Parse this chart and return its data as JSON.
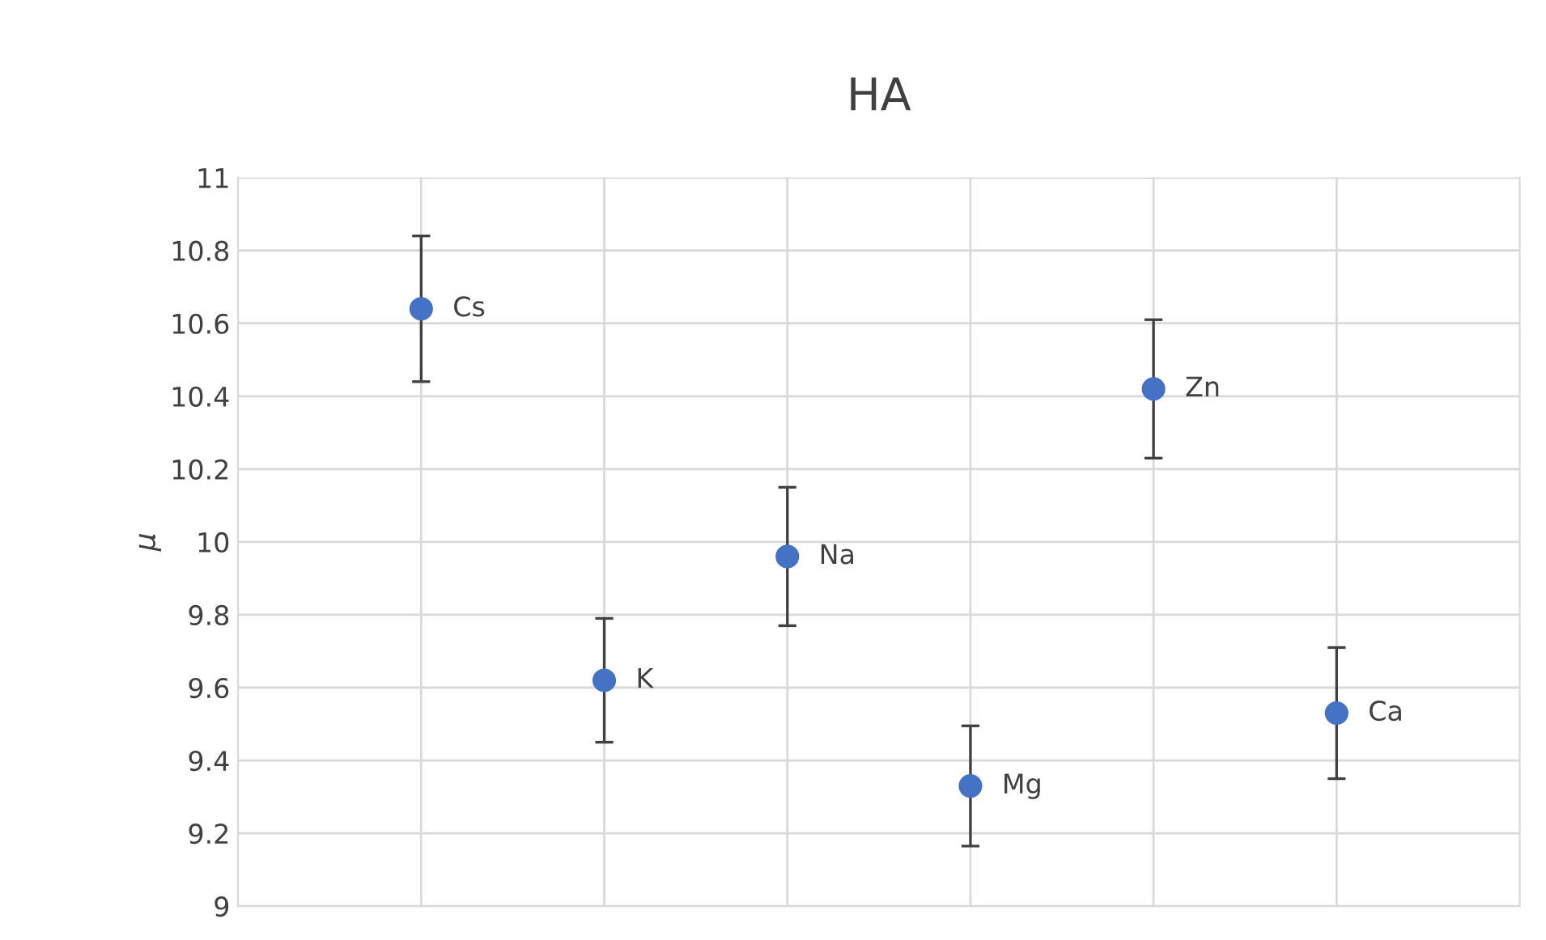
{
  "chart_data": {
    "type": "scatter",
    "title": "HA",
    "ylabel": "μ",
    "categories": [
      null,
      null,
      null,
      null,
      null,
      null
    ],
    "values": [
      10.64,
      9.62,
      9.96,
      9.33,
      10.42,
      9.53
    ],
    "errors": [
      0.2,
      0.17,
      0.19,
      0.165,
      0.19,
      0.18
    ],
    "color": "#4472c4",
    "marker": "circle",
    "ylim": [
      9,
      11
    ],
    "yticks": [
      9,
      9.2,
      9.4,
      9.6,
      9.8,
      10,
      10.2,
      10.4,
      10.6,
      10.8,
      11
    ],
    "grid": true,
    "annotations": [
      "Cs",
      "K",
      "Na",
      "Mg",
      "Zn",
      "Ca"
    ]
  }
}
